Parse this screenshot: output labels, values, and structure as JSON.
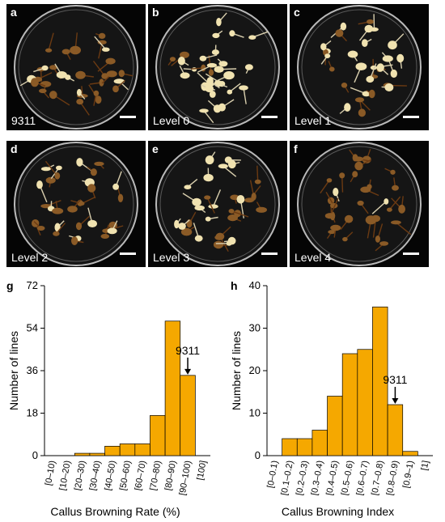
{
  "photos": [
    {
      "letter": "a",
      "label": "9311"
    },
    {
      "letter": "b",
      "label": "Level 0"
    },
    {
      "letter": "c",
      "label": "Level 1"
    },
    {
      "letter": "d",
      "label": "Level 2"
    },
    {
      "letter": "e",
      "label": "Level 3"
    },
    {
      "letter": "f",
      "label": "Level 4"
    }
  ],
  "colors": {
    "bar": "#F5A800",
    "photo_bg": "#050505"
  },
  "chart_data": [
    {
      "panel": "g",
      "type": "bar",
      "categories": [
        "[0–10)",
        "[10–20)",
        "[20–30)",
        "[30–40)",
        "[40–50)",
        "[50–60)",
        "[60–70)",
        "[70–80)",
        "[80–90)",
        "[90–100)",
        "[100]"
      ],
      "values": [
        0,
        0,
        1,
        1,
        4,
        5,
        5,
        17,
        57,
        34,
        0
      ],
      "xlabel": "Callus Browning Rate (%)",
      "ylabel": "Number of lines",
      "yticks": [
        0,
        18,
        36,
        54,
        72
      ],
      "ylim": [
        0,
        72
      ],
      "annotation": {
        "text": "9311",
        "category": "[90–100)"
      }
    },
    {
      "panel": "h",
      "type": "bar",
      "categories": [
        "[0–0.1)",
        "[0.1–0.2)",
        "[0.2–0.3)",
        "[0.3–0.4)",
        "[0.4–0.5)",
        "[0.5–0.6)",
        "[0.6–0.7)",
        "[0.7–0.8)",
        "[0.8–0.9)",
        "[0.9–1)",
        "[1]"
      ],
      "values": [
        0,
        4,
        4,
        6,
        14,
        24,
        25,
        35,
        12,
        1,
        0
      ],
      "xlabel": "Callus Browning Index",
      "ylabel": "Number of lines",
      "yticks": [
        0,
        10,
        20,
        30,
        40
      ],
      "ylim": [
        0,
        40
      ],
      "annotation": {
        "text": "9311",
        "category": "[0.8–0.9)"
      }
    }
  ]
}
